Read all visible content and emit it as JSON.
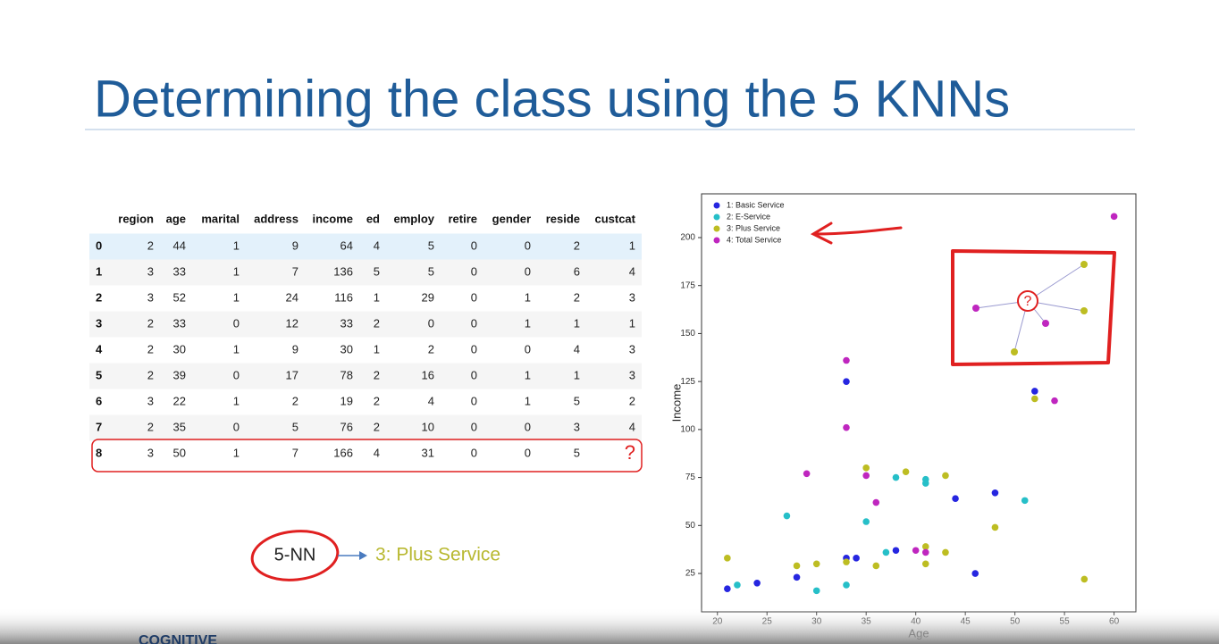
{
  "title": "Determining the class using the 5 KNNs",
  "table": {
    "columns": [
      "region",
      "age",
      "marital",
      "address",
      "income",
      "ed",
      "employ",
      "retire",
      "gender",
      "reside",
      "custcat"
    ],
    "rows": [
      [
        0,
        2,
        44,
        1,
        9,
        64,
        4,
        5,
        0,
        0,
        2,
        1
      ],
      [
        1,
        3,
        33,
        1,
        7,
        136,
        5,
        5,
        0,
        0,
        6,
        4
      ],
      [
        2,
        3,
        52,
        1,
        24,
        116,
        1,
        29,
        0,
        1,
        2,
        3
      ],
      [
        3,
        2,
        33,
        0,
        12,
        33,
        2,
        0,
        0,
        1,
        1,
        1
      ],
      [
        4,
        2,
        30,
        1,
        9,
        30,
        1,
        2,
        0,
        0,
        4,
        3
      ],
      [
        5,
        2,
        39,
        0,
        17,
        78,
        2,
        16,
        0,
        1,
        1,
        3
      ],
      [
        6,
        3,
        22,
        1,
        2,
        19,
        2,
        4,
        0,
        1,
        5,
        2
      ],
      [
        7,
        2,
        35,
        0,
        5,
        76,
        2,
        10,
        0,
        0,
        3,
        4
      ],
      [
        8,
        3,
        50,
        1,
        7,
        166,
        4,
        31,
        0,
        0,
        5,
        "?"
      ]
    ]
  },
  "chart_data": {
    "type": "scatter",
    "xlabel": "Age",
    "ylabel": "Income",
    "xlim": [
      18.4,
      62.2
    ],
    "ylim": [
      5,
      222.8
    ],
    "xticks": [
      20,
      25,
      30,
      35,
      40,
      45,
      50,
      55,
      60
    ],
    "yticks": [
      25,
      50,
      75,
      100,
      125,
      150,
      175,
      200
    ],
    "legend": "upper left",
    "series": [
      {
        "name": "1: Basic Service",
        "color": "#2626e0",
        "x": [
          21,
          24,
          28,
          33,
          33,
          34,
          38,
          44,
          46,
          48,
          52
        ],
        "values": [
          17,
          20,
          23,
          125,
          33,
          33,
          37,
          64,
          25,
          67,
          120
        ]
      },
      {
        "name": "2: E-Service",
        "color": "#26bfc8",
        "x": [
          22,
          27,
          30,
          33,
          35,
          37,
          38,
          41,
          41,
          51
        ],
        "values": [
          19,
          55,
          16,
          19,
          52,
          36,
          75,
          74,
          72,
          63
        ]
      },
      {
        "name": "3: Plus Service",
        "color": "#bdbd22",
        "x": [
          21,
          28,
          30,
          33,
          35,
          36,
          39,
          41,
          41,
          43,
          43,
          48,
          52,
          57
        ],
        "values": [
          33,
          29,
          30,
          31,
          80,
          29,
          78,
          39,
          30,
          76,
          36,
          49,
          116,
          22
        ]
      },
      {
        "name": "4: Total Service",
        "color": "#bf26bf",
        "x": [
          29,
          33,
          33,
          35,
          36,
          40,
          41,
          54,
          60
        ],
        "values": [
          77,
          136,
          101,
          76,
          62,
          37,
          36,
          115,
          211
        ]
      }
    ]
  },
  "annotation": {
    "method": "5-NN",
    "result": "3: Plus Service"
  },
  "inset_label": "?",
  "logo": "COGNITIVE"
}
